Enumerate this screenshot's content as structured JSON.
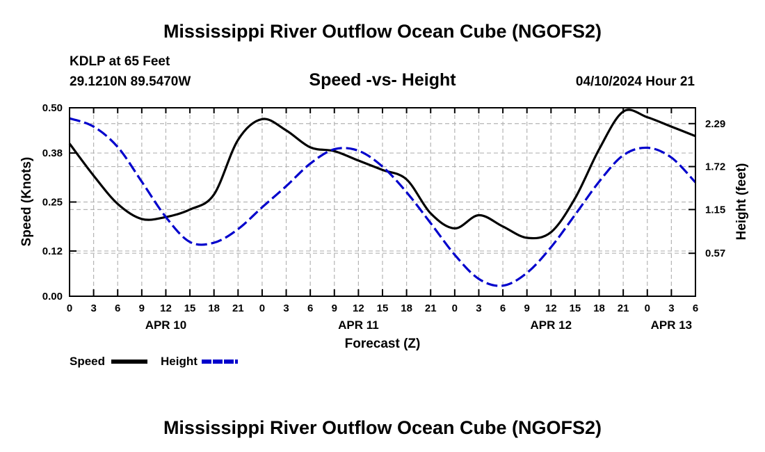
{
  "page": {
    "title": "Mississippi River Outflow Ocean Cube (NGOFS2)",
    "station": "KDLP at 65 Feet",
    "coords": "29.1210N  89.5470W",
    "subtitle": "Speed -vs- Height",
    "date": "04/10/2024 Hour 21",
    "footer_title": "Mississippi River Outflow Ocean Cube (NGOFS2)"
  },
  "legend": {
    "speed_label": "Speed",
    "height_label": "Height"
  },
  "colors": {
    "speed": "#000000",
    "height": "#0000cc",
    "grid": "#b4b4b4"
  },
  "chart_data": {
    "type": "line",
    "xlabel": "Forecast (Z)",
    "ylabel_left": "Speed (Knots)",
    "ylabel_right": "Height (feet)",
    "xlim": [
      0,
      78
    ],
    "ylim_left": [
      0,
      0.5
    ],
    "ylim_right": [
      0,
      2.5
    ],
    "x_ticks": [
      0,
      3,
      6,
      9,
      12,
      15,
      18,
      21,
      24,
      27,
      30,
      33,
      36,
      39,
      42,
      45,
      48,
      51,
      54,
      57,
      60,
      63,
      66,
      69,
      72,
      75,
      78
    ],
    "x_tick_labels": [
      "0",
      "3",
      "6",
      "9",
      "12",
      "15",
      "18",
      "21",
      "0",
      "3",
      "6",
      "9",
      "12",
      "15",
      "18",
      "21",
      "0",
      "3",
      "6",
      "9",
      "12",
      "15",
      "18",
      "21",
      "0",
      "3",
      "6"
    ],
    "day_labels": [
      {
        "x": 12,
        "label": "APR 10"
      },
      {
        "x": 36,
        "label": "APR 11"
      },
      {
        "x": 60,
        "label": "APR 12"
      },
      {
        "x": 75,
        "label": "APR 13"
      }
    ],
    "y_left_ticks": [
      0.0,
      0.12,
      0.25,
      0.38,
      0.5
    ],
    "y_left_tick_labels": [
      "0.00",
      "0.12",
      "0.25",
      "0.38",
      "0.50"
    ],
    "y_right_ticks": [
      0.57,
      1.15,
      1.72,
      2.29
    ],
    "y_right_tick_labels": [
      "0.57",
      "1.15",
      "1.72",
      "2.29"
    ],
    "series": [
      {
        "name": "Speed",
        "axis": "left",
        "style": "solid",
        "x": [
          0,
          3,
          6,
          9,
          12,
          15,
          18,
          21,
          24,
          27,
          30,
          33,
          36,
          39,
          42,
          45,
          48,
          51,
          54,
          57,
          60,
          63,
          66,
          69,
          72,
          75,
          78
        ],
        "values": [
          0.405,
          0.32,
          0.245,
          0.205,
          0.21,
          0.23,
          0.27,
          0.415,
          0.47,
          0.44,
          0.395,
          0.385,
          0.36,
          0.335,
          0.31,
          0.22,
          0.18,
          0.215,
          0.185,
          0.155,
          0.17,
          0.26,
          0.39,
          0.49,
          0.475,
          0.45,
          0.425
        ]
      },
      {
        "name": "Height",
        "axis": "right",
        "style": "dashed",
        "x": [
          0,
          3,
          6,
          9,
          12,
          15,
          18,
          21,
          24,
          27,
          30,
          33,
          36,
          39,
          42,
          45,
          48,
          51,
          54,
          57,
          60,
          63,
          66,
          69,
          72,
          75,
          78
        ],
        "values": [
          2.36,
          2.25,
          1.98,
          1.52,
          1.05,
          0.72,
          0.71,
          0.89,
          1.18,
          1.46,
          1.76,
          1.95,
          1.93,
          1.72,
          1.38,
          0.97,
          0.55,
          0.23,
          0.14,
          0.31,
          0.65,
          1.08,
          1.52,
          1.87,
          1.97,
          1.84,
          1.51
        ]
      }
    ]
  }
}
